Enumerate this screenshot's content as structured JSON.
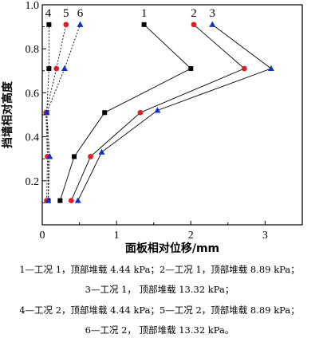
{
  "chart_data": {
    "type": "line",
    "xlabel": "面板相对位移/mm",
    "ylabel": "挡墙相对高度",
    "xlim": [
      0,
      3.5
    ],
    "ylim": [
      0,
      1.0
    ],
    "xticks": [
      "0",
      "1",
      "2",
      "3"
    ],
    "xtick_values": [
      0,
      1,
      2,
      3
    ],
    "yticks": [
      "0.2",
      "0.4",
      "0.6",
      "0.8",
      "1.0"
    ],
    "ytick_values": [
      0.2,
      0.4,
      0.6,
      0.8,
      1.0
    ],
    "grid": false,
    "series": [
      {
        "name": "1",
        "marker": "square",
        "color": "#000000",
        "dash": "solid",
        "points": [
          [
            0.24,
            0.11
          ],
          [
            0.43,
            0.31
          ],
          [
            0.84,
            0.51
          ],
          [
            2.0,
            0.71
          ],
          [
            1.37,
            0.91
          ]
        ]
      },
      {
        "name": "2",
        "marker": "circle",
        "color": "#e02020",
        "dash": "solid",
        "points": [
          [
            0.39,
            0.11
          ],
          [
            0.65,
            0.31
          ],
          [
            1.32,
            0.51
          ],
          [
            2.72,
            0.71
          ],
          [
            2.04,
            0.91
          ]
        ]
      },
      {
        "name": "3",
        "marker": "triangle",
        "color": "#1030c8",
        "dash": "solid",
        "points": [
          [
            0.48,
            0.11
          ],
          [
            0.8,
            0.33
          ],
          [
            1.55,
            0.52
          ],
          [
            3.08,
            0.71
          ],
          [
            2.29,
            0.91
          ]
        ]
      },
      {
        "name": "4",
        "marker": "square",
        "color": "#000000",
        "dash": "dotted",
        "points": [
          [
            0.08,
            0.11
          ],
          [
            0.08,
            0.31
          ],
          [
            0.06,
            0.51
          ],
          [
            0.09,
            0.71
          ],
          [
            0.09,
            0.91
          ]
        ]
      },
      {
        "name": "5",
        "marker": "circle",
        "color": "#e02020",
        "dash": "dotted",
        "points": [
          [
            0.06,
            0.11
          ],
          [
            0.07,
            0.31
          ],
          [
            0.05,
            0.51
          ],
          [
            0.19,
            0.71
          ],
          [
            0.32,
            0.91
          ]
        ]
      },
      {
        "name": "6",
        "marker": "triangle",
        "color": "#1030c8",
        "dash": "dotted",
        "points": [
          [
            0.08,
            0.11
          ],
          [
            0.1,
            0.31
          ],
          [
            0.06,
            0.51
          ],
          [
            0.3,
            0.71
          ],
          [
            0.51,
            0.91
          ]
        ]
      }
    ]
  },
  "legend_text": [
    "1—工况 1，顶部堆载 4.44 kPa；2—工况 1，顶部堆载 8.89 kPa；",
    "3—工况 1，  顶部堆载 13.32 kPa；",
    "4—工况 2，顶部堆载 4.44 kPa；5—工况 2，顶部堆载 8.89 kPa；",
    "6—工况 2，  顶部堆载 13.32 kPa。"
  ]
}
